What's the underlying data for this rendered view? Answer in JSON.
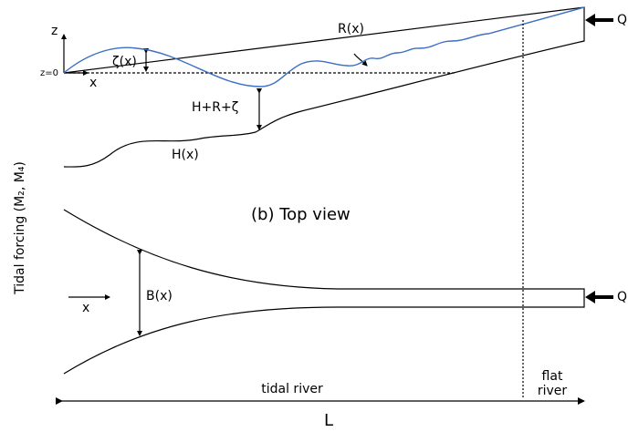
{
  "side_view": {
    "z_axis": "z",
    "z0": "z=0",
    "x_axis": "x",
    "zeta": "ζ(x)",
    "r": "R(x)",
    "depth": "H+R+ζ",
    "h": "H(x)",
    "discharge": "Q"
  },
  "top_view": {
    "title": "(b) Top view",
    "x_axis": "x",
    "width": "B(x)",
    "discharge": "Q"
  },
  "forcing": "Tidal forcing  (M₂, M₄)",
  "regions": {
    "tidal": "tidal river",
    "flat_1": "flat",
    "flat_2": "river",
    "length": "L"
  }
}
